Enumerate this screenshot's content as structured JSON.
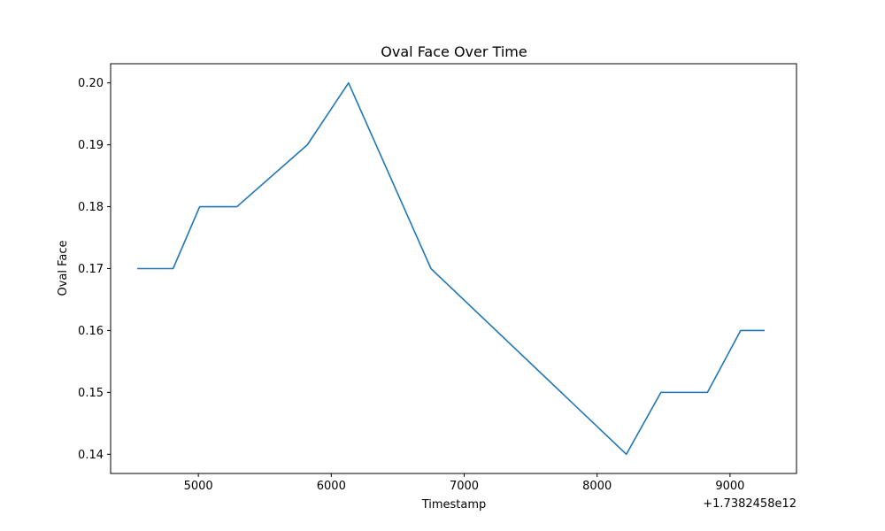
{
  "chart_data": {
    "type": "line",
    "title": "Oval Face Over Time",
    "xlabel": "Timestamp",
    "ylabel": "Oval Face",
    "x_offset_label": "+1.7382458e12",
    "xlim": [
      4340,
      9500
    ],
    "ylim": [
      0.1369,
      0.2031
    ],
    "x_ticks": [
      5000,
      6000,
      7000,
      8000,
      9000
    ],
    "x_tick_labels": [
      "5000",
      "6000",
      "7000",
      "8000",
      "9000"
    ],
    "y_ticks": [
      0.14,
      0.15,
      0.16,
      0.17,
      0.18,
      0.19,
      0.2
    ],
    "y_tick_labels": [
      "0.14",
      "0.15",
      "0.16",
      "0.17",
      "0.18",
      "0.19",
      "0.20"
    ],
    "grid": false,
    "series": [
      {
        "color": "#1f77b4",
        "x": [
          4540,
          4810,
          5010,
          5290,
          5820,
          6130,
          6750,
          8220,
          8480,
          8830,
          9080,
          9260
        ],
        "y": [
          0.17,
          0.17,
          0.18,
          0.18,
          0.19,
          0.2,
          0.17,
          0.14,
          0.15,
          0.15,
          0.16,
          0.16
        ]
      }
    ]
  }
}
